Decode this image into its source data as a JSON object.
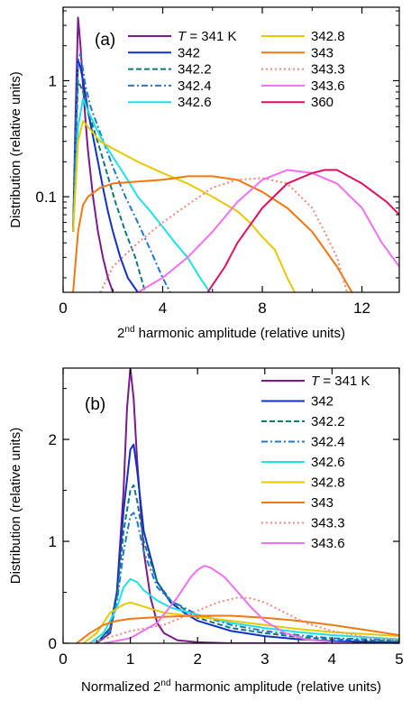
{
  "chart_data": [
    {
      "type": "line",
      "panel_label": "(a)",
      "xlabel_pre": "2",
      "xlabel_sup": "nd",
      "xlabel_post": " harmonic amplitude (relative units)",
      "ylabel": "Distribution (relative units)",
      "xlim": [
        0,
        13.5
      ],
      "ylim": [
        0.015,
        4.3
      ],
      "yscale": "log",
      "xticks": [
        "0",
        "4",
        "8",
        "12"
      ],
      "xtick_values": [
        0,
        4,
        8,
        12
      ],
      "yticks": [
        "0.1",
        "1"
      ],
      "ytick_values": [
        0.1,
        1
      ],
      "legend_prefix": "T",
      "legend_first_suffix": " = 341 K",
      "legend_location": "top-right",
      "series": [
        {
          "name": "341",
          "color": "#7b1a8c",
          "dash": "",
          "x": [
            0.4,
            0.5,
            0.6,
            0.7,
            0.8,
            0.9,
            1.0,
            1.2,
            1.4,
            1.6,
            1.8,
            2.0
          ],
          "y": [
            0.05,
            0.5,
            3.5,
            2.0,
            0.9,
            0.45,
            0.25,
            0.1,
            0.05,
            0.03,
            0.02,
            0.015
          ]
        },
        {
          "name": "342",
          "color": "#1030c8",
          "dash": "",
          "x": [
            0.4,
            0.5,
            0.6,
            0.7,
            0.8,
            0.9,
            1.0,
            1.2,
            1.4,
            1.6,
            1.8,
            2.0,
            2.3,
            2.6,
            3.0
          ],
          "y": [
            0.05,
            0.3,
            1.5,
            1.3,
            1.0,
            0.75,
            0.55,
            0.33,
            0.2,
            0.12,
            0.075,
            0.05,
            0.03,
            0.02,
            0.015
          ]
        },
        {
          "name": "342.2",
          "color": "#0a7a7a",
          "dash": "6,3",
          "x": [
            0.4,
            0.5,
            0.6,
            0.7,
            0.8,
            1.0,
            1.2,
            1.5,
            1.8,
            2.1,
            2.5,
            2.9,
            3.3
          ],
          "y": [
            0.05,
            0.25,
            1.0,
            0.9,
            0.8,
            0.55,
            0.4,
            0.25,
            0.15,
            0.09,
            0.05,
            0.03,
            0.015
          ]
        },
        {
          "name": "342.4",
          "color": "#1e78d0",
          "dash": "7,3,2,3",
          "x": [
            0.4,
            0.5,
            0.6,
            0.7,
            0.9,
            1.1,
            1.4,
            1.7,
            2.0,
            2.5,
            3.0,
            3.5,
            4.0,
            4.3
          ],
          "y": [
            0.05,
            0.3,
            1.5,
            1.7,
            0.9,
            0.6,
            0.4,
            0.27,
            0.18,
            0.1,
            0.06,
            0.035,
            0.02,
            0.015
          ]
        },
        {
          "name": "342.6",
          "color": "#1ee0e8",
          "dash": "",
          "x": [
            0.4,
            0.6,
            0.8,
            1.0,
            1.3,
            1.6,
            2.0,
            2.5,
            3.0,
            3.5,
            4.0,
            4.5,
            5.0,
            5.5,
            5.9
          ],
          "y": [
            0.05,
            0.4,
            0.7,
            0.55,
            0.4,
            0.3,
            0.22,
            0.15,
            0.1,
            0.075,
            0.055,
            0.04,
            0.03,
            0.02,
            0.015
          ]
        },
        {
          "name": "342.8",
          "color": "#e8c800",
          "dash": "",
          "x": [
            0.4,
            0.6,
            0.8,
            1.0,
            1.5,
            2.0,
            3.0,
            4.0,
            5.0,
            6.0,
            7.0,
            7.5,
            8.0,
            8.5,
            9.0,
            9.3
          ],
          "y": [
            0.05,
            0.3,
            0.45,
            0.4,
            0.3,
            0.26,
            0.2,
            0.16,
            0.13,
            0.1,
            0.075,
            0.06,
            0.045,
            0.035,
            0.02,
            0.015
          ]
        },
        {
          "name": "343",
          "color": "#f07810",
          "dash": "",
          "x": [
            0.4,
            0.6,
            0.8,
            1.0,
            1.5,
            2.0,
            3.0,
            4.0,
            5.0,
            6.0,
            7.0,
            8.0,
            9.0,
            10.0,
            11.0,
            11.6
          ],
          "y": [
            0.015,
            0.05,
            0.085,
            0.1,
            0.12,
            0.13,
            0.135,
            0.14,
            0.15,
            0.15,
            0.14,
            0.11,
            0.08,
            0.05,
            0.025,
            0.015
          ]
        },
        {
          "name": "343.3",
          "color": "#f08878",
          "dash": "2,3",
          "x": [
            1.5,
            2.0,
            3.0,
            4.0,
            5.0,
            6.0,
            7.0,
            8.0,
            9.0,
            10.0,
            10.5,
            11.0,
            11.4
          ],
          "y": [
            0.015,
            0.025,
            0.04,
            0.06,
            0.085,
            0.12,
            0.14,
            0.145,
            0.13,
            0.08,
            0.05,
            0.03,
            0.015
          ]
        },
        {
          "name": "343.6",
          "color": "#f070f0",
          "dash": "",
          "x": [
            3.0,
            4.0,
            5.0,
            6.0,
            7.0,
            8.0,
            9.0,
            10.0,
            11.0,
            12.0,
            12.8,
            13.5
          ],
          "y": [
            0.015,
            0.02,
            0.03,
            0.05,
            0.09,
            0.14,
            0.17,
            0.16,
            0.13,
            0.08,
            0.04,
            0.025
          ]
        },
        {
          "name": "360",
          "color": "#e01060",
          "dash": "",
          "x": [
            5.8,
            6.5,
            7.0,
            8.0,
            9.0,
            10.0,
            10.5,
            11.0,
            12.0,
            13.0,
            13.5
          ],
          "y": [
            0.015,
            0.025,
            0.04,
            0.08,
            0.13,
            0.16,
            0.17,
            0.17,
            0.13,
            0.09,
            0.07
          ]
        }
      ]
    },
    {
      "type": "line",
      "panel_label": "(b)",
      "xlabel_pre": "Normalized 2",
      "xlabel_sup": "nd",
      "xlabel_post": " harmonic amplitude (relative units)",
      "ylabel": "Distribution (relative units)",
      "xlim": [
        0,
        5
      ],
      "ylim": [
        0,
        2.7
      ],
      "yscale": "linear",
      "xticks": [
        "0",
        "1",
        "2",
        "3",
        "4",
        "5"
      ],
      "xtick_values": [
        0,
        1,
        2,
        3,
        4,
        5
      ],
      "yticks": [
        "0",
        "1",
        "2"
      ],
      "ytick_values": [
        0,
        1,
        2
      ],
      "legend_prefix": "T",
      "legend_first_suffix": " = 341 K",
      "legend_location": "top-right",
      "series": [
        {
          "name": "341",
          "color": "#7b1a8c",
          "dash": "",
          "x": [
            0.5,
            0.7,
            0.8,
            0.9,
            0.95,
            1.0,
            1.05,
            1.1,
            1.2,
            1.3,
            1.4,
            1.5,
            1.7,
            2.0,
            2.5,
            3.0,
            5.0
          ],
          "y": [
            0.0,
            0.1,
            0.5,
            1.5,
            2.3,
            2.7,
            2.4,
            1.8,
            0.9,
            0.45,
            0.2,
            0.1,
            0.03,
            0.01,
            0.0,
            0.0,
            0.0
          ]
        },
        {
          "name": "342",
          "color": "#1030c8",
          "dash": "",
          "x": [
            0.5,
            0.7,
            0.8,
            0.9,
            1.0,
            1.05,
            1.1,
            1.2,
            1.4,
            1.6,
            1.8,
            2.0,
            2.5,
            3.0,
            3.5,
            4.0,
            5.0
          ],
          "y": [
            0.0,
            0.15,
            0.5,
            1.3,
            1.9,
            1.95,
            1.7,
            1.1,
            0.6,
            0.4,
            0.3,
            0.22,
            0.12,
            0.07,
            0.04,
            0.02,
            0.01
          ]
        },
        {
          "name": "342.2",
          "color": "#0a7a7a",
          "dash": "6,3",
          "x": [
            0.5,
            0.7,
            0.8,
            0.9,
            1.0,
            1.05,
            1.1,
            1.2,
            1.4,
            1.6,
            2.0,
            2.5,
            3.0,
            3.5,
            4.0,
            5.0
          ],
          "y": [
            0.0,
            0.15,
            0.45,
            1.1,
            1.5,
            1.55,
            1.4,
            1.0,
            0.6,
            0.42,
            0.25,
            0.15,
            0.1,
            0.06,
            0.04,
            0.02
          ]
        },
        {
          "name": "342.4",
          "color": "#1e78d0",
          "dash": "7,3,2,3",
          "x": [
            0.5,
            0.7,
            0.8,
            0.9,
            1.0,
            1.05,
            1.1,
            1.2,
            1.4,
            1.6,
            2.0,
            2.5,
            3.0,
            3.5,
            4.0,
            5.0
          ],
          "y": [
            0.0,
            0.12,
            0.4,
            0.9,
            1.25,
            1.28,
            1.2,
            0.9,
            0.55,
            0.42,
            0.28,
            0.18,
            0.12,
            0.08,
            0.05,
            0.03
          ]
        },
        {
          "name": "342.6",
          "color": "#1ee0e8",
          "dash": "",
          "x": [
            0.4,
            0.6,
            0.8,
            0.9,
            1.0,
            1.1,
            1.2,
            1.4,
            1.6,
            2.0,
            2.5,
            3.0,
            3.5,
            4.0,
            4.5,
            5.0
          ],
          "y": [
            0.0,
            0.1,
            0.35,
            0.55,
            0.63,
            0.6,
            0.52,
            0.42,
            0.35,
            0.28,
            0.2,
            0.15,
            0.11,
            0.08,
            0.06,
            0.04
          ]
        },
        {
          "name": "342.8",
          "color": "#e8c800",
          "dash": "",
          "x": [
            0.3,
            0.5,
            0.7,
            0.9,
            1.0,
            1.2,
            1.5,
            2.0,
            2.5,
            3.0,
            3.5,
            4.0,
            4.5,
            5.0
          ],
          "y": [
            0.0,
            0.1,
            0.3,
            0.38,
            0.4,
            0.36,
            0.3,
            0.26,
            0.22,
            0.18,
            0.14,
            0.11,
            0.09,
            0.07
          ]
        },
        {
          "name": "343",
          "color": "#f07810",
          "dash": "",
          "x": [
            0.2,
            0.4,
            0.6,
            0.8,
            1.0,
            1.5,
            2.0,
            2.5,
            3.0,
            3.5,
            4.0,
            4.5,
            5.0
          ],
          "y": [
            0.0,
            0.1,
            0.18,
            0.22,
            0.24,
            0.26,
            0.27,
            0.27,
            0.25,
            0.22,
            0.18,
            0.13,
            0.08
          ]
        },
        {
          "name": "343.3",
          "color": "#f08878",
          "dash": "2,3",
          "x": [
            0.4,
            0.8,
            1.0,
            1.5,
            2.0,
            2.3,
            2.6,
            2.8,
            3.0,
            3.3,
            3.6,
            4.0,
            4.5,
            5.0
          ],
          "y": [
            0.0,
            0.08,
            0.12,
            0.18,
            0.32,
            0.4,
            0.45,
            0.44,
            0.4,
            0.3,
            0.2,
            0.12,
            0.06,
            0.03
          ]
        },
        {
          "name": "343.6",
          "color": "#f070f0",
          "dash": "",
          "x": [
            0.6,
            1.0,
            1.4,
            1.7,
            1.9,
            2.0,
            2.1,
            2.2,
            2.4,
            2.6,
            2.8,
            3.0,
            3.3,
            3.6,
            4.0,
            4.3
          ],
          "y": [
            0.0,
            0.05,
            0.2,
            0.45,
            0.65,
            0.72,
            0.76,
            0.74,
            0.65,
            0.5,
            0.35,
            0.22,
            0.1,
            0.04,
            0.01,
            0.0
          ]
        }
      ]
    }
  ]
}
